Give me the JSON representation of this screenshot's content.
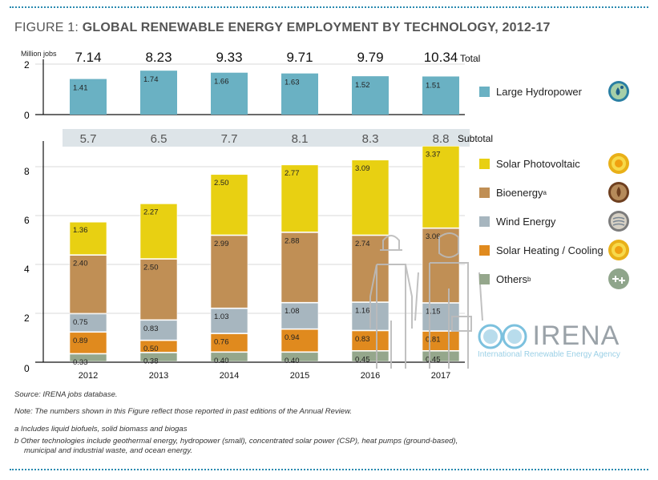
{
  "figure_label": "FIGURE 1:",
  "figure_title": "GLOBAL RENEWABLE ENERGY EMPLOYMENT BY TECHNOLOGY, 2012-17",
  "colors": {
    "large_hydropower": "#6ab1c3",
    "solar_pv": "#e8d012",
    "bioenergy": "#c08f55",
    "wind": "#a7b6bf",
    "solar_heating": "#e08a1e",
    "others": "#95a78c",
    "subtotal_band": "#dde4e8",
    "accent_dots": "#2a8ab0"
  },
  "chart_data": [
    {
      "type": "bar",
      "name": "Large Hydropower",
      "ylabel": "Million jobs",
      "ylim": [
        0,
        2
      ],
      "yticks": [
        "0",
        "2"
      ],
      "categories": [
        "2012",
        "2013",
        "2014",
        "2015",
        "2016",
        "2017"
      ],
      "series": [
        {
          "name": "Large Hydropower",
          "values": [
            1.41,
            1.74,
            1.66,
            1.63,
            1.52,
            1.51
          ],
          "labels": [
            "1.41",
            "1.74",
            "1.66",
            "1.63",
            "1.52",
            "1.51"
          ]
        }
      ],
      "totals": [
        "7.14",
        "8.23",
        "9.33",
        "9.71",
        "9.79",
        "10.34"
      ],
      "totals_label": "Total",
      "grid": true
    },
    {
      "type": "bar",
      "stacked": true,
      "name": "Other renewable technologies",
      "ylim": [
        0,
        9.5
      ],
      "yticks": [
        "0",
        "2",
        "4",
        "6",
        "8"
      ],
      "ytick_values": [
        0,
        2,
        4,
        6,
        8
      ],
      "categories": [
        "2012",
        "2013",
        "2014",
        "2015",
        "2016",
        "2017"
      ],
      "subtotals": [
        "5.7",
        "6.5",
        "7.7",
        "8.1",
        "8.3",
        "8.8"
      ],
      "subtotal_label": "Subtotal",
      "series": [
        {
          "name": "Others",
          "key": "others",
          "values": [
            0.33,
            0.38,
            0.4,
            0.4,
            0.45,
            0.45
          ],
          "labels": [
            "0.33",
            "0.38",
            "0.40",
            "0.40",
            "0.45",
            "0.45"
          ]
        },
        {
          "name": "Solar Heating / Cooling",
          "key": "solar_heating",
          "values": [
            0.89,
            0.5,
            0.76,
            0.94,
            0.83,
            0.81
          ],
          "labels": [
            "0.89",
            "0.50",
            "0.76",
            "0.94",
            "0.83",
            "0.81"
          ]
        },
        {
          "name": "Wind Energy",
          "key": "wind",
          "values": [
            0.75,
            0.83,
            1.03,
            1.08,
            1.16,
            1.15
          ],
          "labels": [
            "0.75",
            "0.83",
            "1.03",
            "1.08",
            "1.16",
            "1.15"
          ]
        },
        {
          "name": "Bioenergy",
          "key": "bioenergy",
          "values": [
            2.4,
            2.5,
            2.99,
            2.88,
            2.74,
            3.06
          ],
          "labels": [
            "2.40",
            "2.50",
            "2.99",
            "2.88",
            "2.74",
            "3.06"
          ]
        },
        {
          "name": "Solar Photovoltaic",
          "key": "solar_pv",
          "values": [
            1.36,
            2.27,
            2.5,
            2.77,
            3.09,
            3.37
          ],
          "labels": [
            "1.36",
            "2.27",
            "2.50",
            "2.77",
            "3.09",
            "3.37"
          ]
        }
      ],
      "grid": true,
      "legend": "right"
    }
  ],
  "legend": [
    {
      "label": "Large Hydropower",
      "sup": "",
      "key": "large_hydropower",
      "icon": "water-drop-icon"
    },
    {
      "label": "Solar Photovoltaic",
      "sup": "",
      "key": "solar_pv",
      "icon": "sun-icon"
    },
    {
      "label": "Bioenergy",
      "sup": "a",
      "key": "bioenergy",
      "icon": "leaf-lotus-icon"
    },
    {
      "label": "Wind Energy",
      "sup": "",
      "key": "wind",
      "icon": "wind-icon"
    },
    {
      "label": "Solar Heating / Cooling",
      "sup": "",
      "key": "solar_heating",
      "icon": "sun-icon"
    },
    {
      "label": "Others",
      "sup": "b",
      "key": "others",
      "icon": "plus-plus-icon"
    }
  ],
  "logo": {
    "name": "IRENA",
    "tagline": "International Renewable Energy Agency"
  },
  "notes": {
    "source": "Source: IRENA jobs database.",
    "note": "Note: The numbers shown in this Figure reflect those reported in past editions of the Annual Review.",
    "a": "a  Includes liquid biofuels, solid biomass and biogas",
    "b_line1": "b  Other technologies include geothermal energy, hydropower (small), concentrated solar power (CSP), heat pumps (ground-based),",
    "b_line2": "municipal and industrial waste, and ocean energy."
  }
}
